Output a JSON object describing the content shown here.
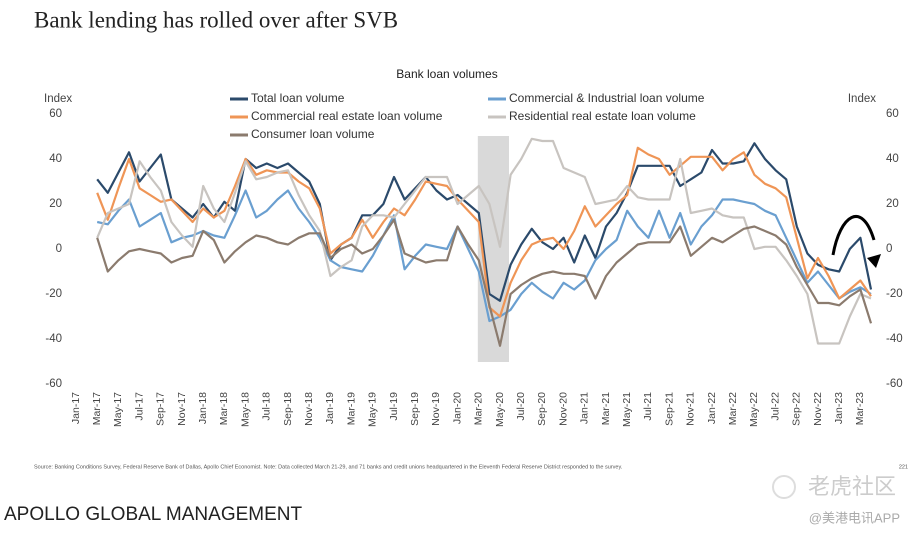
{
  "title": "Bank lending has rolled over after SVB",
  "source": "Source: Banking Conditions Survey, Federal Reserve Bank of Dallas, Apollo Chief Economist. Note: Data collected March 21-29, and 71 banks and credit unions headquartered in the Eleventh Federal Reserve District responded to the survey.",
  "page_number": "221",
  "brand": "APOLLO GLOBAL MANAGEMENT",
  "watermark": "老虎社区",
  "watermark_account": "@美港电讯APP",
  "chart_data": {
    "type": "line",
    "title": "Bank loan volumes",
    "ylabel": "Index",
    "y2label": "Index",
    "categories": [
      "Jan-17",
      null,
      "Mar-17",
      null,
      "May-17",
      null,
      "Jul-17",
      null,
      "Sep-17",
      null,
      "Nov-17",
      null,
      "Jan-18",
      null,
      "Mar-18",
      null,
      "May-18",
      null,
      "Jul-18",
      null,
      "Sep-18",
      null,
      "Nov-18",
      null,
      "Jan-19",
      null,
      "Mar-19",
      null,
      "May-19",
      null,
      "Jul-19",
      null,
      "Sep-19",
      null,
      "Nov-19",
      null,
      "Jan-20",
      null,
      "Mar-20",
      null,
      "May-20",
      null,
      "Jul-20",
      null,
      "Sep-20",
      null,
      "Nov-20",
      null,
      "Jan-21",
      null,
      "Mar-21",
      null,
      "May-21",
      null,
      "Jul-21",
      null,
      "Sep-21",
      null,
      "Nov-21",
      null,
      "Jan-22",
      null,
      "Mar-22",
      null,
      "May-22",
      null,
      "Jul-22",
      null,
      "Sep-22",
      null,
      "Nov-22",
      null,
      "Jan-23",
      null,
      "Mar-23",
      null
    ],
    "shaded_range": [
      "Mar-20",
      "May-20"
    ],
    "series": [
      {
        "name": "Total loan volume",
        "color": "#2b4a6b",
        "values": [
          null,
          null,
          31,
          25,
          34,
          43,
          30,
          36,
          42,
          22,
          18,
          14,
          20,
          14,
          21,
          17,
          40,
          36,
          38,
          36,
          38,
          34,
          30,
          20,
          -5,
          2,
          5,
          15,
          15,
          20,
          32,
          22,
          27,
          32,
          26,
          22,
          24,
          20,
          16,
          -20,
          -23,
          -7,
          2,
          9,
          3,
          0,
          5,
          -6,
          6,
          -4,
          10,
          16,
          25,
          37,
          37,
          37,
          37,
          28,
          31,
          34,
          44,
          38,
          38,
          39,
          47,
          40,
          35,
          31,
          10,
          -2,
          -7,
          -9,
          -10,
          0,
          5,
          -18
        ]
      },
      {
        "name": "Commercial & Industrial loan volume",
        "color": "#6a9fd0",
        "values": [
          null,
          null,
          12,
          11,
          17,
          22,
          10,
          13,
          16,
          3,
          5,
          6,
          8,
          6,
          5,
          15,
          26,
          14,
          17,
          22,
          26,
          18,
          12,
          5,
          -5,
          -8,
          -9,
          -10,
          -3,
          6,
          15,
          -9,
          -3,
          2,
          1,
          0,
          10,
          0,
          -10,
          -32,
          -30,
          -27,
          -20,
          -15,
          -19,
          -22,
          -15,
          -18,
          -14,
          -5,
          0,
          4,
          17,
          10,
          5,
          17,
          5,
          16,
          2,
          10,
          15,
          22,
          22,
          21,
          20,
          17,
          15,
          5,
          -5,
          -15,
          -10,
          -16,
          -22,
          -19,
          -17,
          -20
        ]
      },
      {
        "name": "Commercial real estate loan volume",
        "color": "#ef9556",
        "values": [
          null,
          null,
          25,
          13,
          27,
          40,
          27,
          24,
          21,
          22,
          17,
          12,
          18,
          14,
          17,
          28,
          40,
          33,
          35,
          34,
          34,
          30,
          27,
          18,
          -2,
          2,
          5,
          13,
          5,
          12,
          18,
          15,
          22,
          30,
          29,
          28,
          22,
          17,
          12,
          -26,
          -30,
          -15,
          -5,
          2,
          4,
          5,
          0,
          8,
          19,
          10,
          15,
          20,
          24,
          45,
          42,
          40,
          33,
          37,
          41,
          41,
          41,
          35,
          40,
          43,
          33,
          29,
          27,
          23,
          5,
          -13,
          -4,
          -12,
          -22,
          -18,
          -14,
          -21
        ]
      },
      {
        "name": "Residential real estate loan volume",
        "color": "#c8c4c0",
        "values": [
          null,
          null,
          5,
          16,
          18,
          20,
          39,
          32,
          26,
          12,
          6,
          1,
          28,
          18,
          12,
          25,
          39,
          31,
          32,
          34,
          35,
          24,
          15,
          8,
          -12,
          -8,
          -5,
          10,
          15,
          15,
          14,
          20,
          26,
          32,
          32,
          32,
          20,
          24,
          28,
          20,
          1,
          33,
          40,
          49,
          48,
          48,
          36,
          34,
          32,
          20,
          21,
          22,
          28,
          23,
          22,
          22,
          22,
          40,
          16,
          17,
          18,
          15,
          14,
          14,
          0,
          1,
          1,
          -5,
          -12,
          -20,
          -42,
          -42,
          -42,
          -30,
          -20,
          -22
        ]
      },
      {
        "name": "Consumer loan volume",
        "color": "#8b7b6e",
        "values": [
          null,
          null,
          5,
          -10,
          -5,
          -1,
          0,
          -1,
          -2,
          -6,
          -4,
          -3,
          8,
          4,
          -6,
          -1,
          3,
          6,
          5,
          3,
          2,
          5,
          7,
          7,
          -4,
          0,
          2,
          -2,
          0,
          6,
          13,
          -2,
          -4,
          -6,
          -5,
          -5,
          10,
          2,
          -5,
          -25,
          -43,
          -20,
          -16,
          -13,
          -11,
          -10,
          -11,
          -11,
          -12,
          -22,
          -12,
          -6,
          -2,
          2,
          3,
          3,
          3,
          10,
          -3,
          1,
          5,
          3,
          6,
          9,
          10,
          8,
          6,
          2,
          -8,
          -16,
          -24,
          -24,
          -25,
          -21,
          -18,
          -33
        ]
      }
    ],
    "ylim": [
      -60,
      60
    ],
    "yticks": [
      -60,
      -40,
      -20,
      0,
      20,
      40,
      60
    ],
    "y2lim": [
      -60,
      60
    ],
    "y2ticks": [
      -60,
      -40,
      -20,
      0,
      20,
      40,
      60
    ],
    "grid": false
  }
}
